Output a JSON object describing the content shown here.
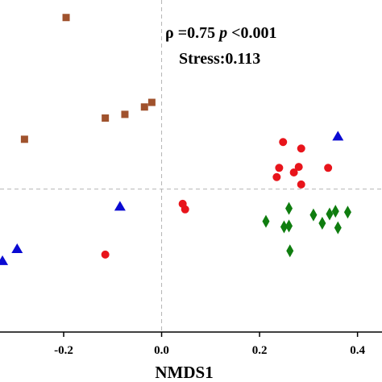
{
  "chart_data": {
    "type": "scatter",
    "title": "",
    "xlabel": "NMDS1",
    "ylabel": "",
    "xlim": [
      -0.33,
      0.45
    ],
    "ylim": [
      -0.155,
      0.205
    ],
    "xticks": [
      -0.2,
      0.0,
      0.2,
      0.4
    ],
    "xtick_labels": [
      "-0.2",
      "0.0",
      "0.2",
      "0.4"
    ],
    "reference_lines": {
      "x": 0.0,
      "y": 0.0,
      "style": "dashed"
    },
    "annotation": {
      "rho_text": "ρ =0.75 ",
      "p_italic": "p",
      "p_text": " <0.001",
      "stress_text": "Stress:0.113"
    },
    "series": [
      {
        "marker": "square",
        "color": "#a0522d",
        "points": [
          [
            -0.195,
            0.186
          ],
          [
            -0.115,
            0.077
          ],
          [
            -0.075,
            0.081
          ],
          [
            -0.035,
            0.089
          ],
          [
            -0.02,
            0.094
          ],
          [
            -0.28,
            0.054
          ]
        ]
      },
      {
        "marker": "circle",
        "color": "#e8141b",
        "points": [
          [
            0.248,
            0.051
          ],
          [
            0.285,
            0.044
          ],
          [
            0.34,
            0.023
          ],
          [
            0.28,
            0.024
          ],
          [
            0.24,
            0.023
          ],
          [
            0.27,
            0.018
          ],
          [
            0.235,
            0.013
          ],
          [
            0.285,
            0.005
          ],
          [
            0.043,
            -0.016
          ],
          [
            0.048,
            -0.022
          ],
          [
            -0.115,
            -0.071
          ]
        ]
      },
      {
        "marker": "triangle",
        "color": "#0a0ad2",
        "points": [
          [
            0.36,
            0.057
          ],
          [
            -0.085,
            -0.019
          ],
          [
            -0.295,
            -0.065
          ],
          [
            -0.325,
            -0.078
          ]
        ]
      },
      {
        "marker": "diamond",
        "color": "#0f7d0f",
        "points": [
          [
            0.26,
            -0.021
          ],
          [
            0.355,
            -0.024
          ],
          [
            0.38,
            -0.025
          ],
          [
            0.31,
            -0.028
          ],
          [
            0.343,
            -0.027
          ],
          [
            0.25,
            -0.041
          ],
          [
            0.213,
            -0.035
          ],
          [
            0.328,
            -0.037
          ],
          [
            0.26,
            -0.04
          ],
          [
            0.36,
            -0.042
          ],
          [
            0.262,
            -0.067
          ]
        ]
      }
    ]
  }
}
